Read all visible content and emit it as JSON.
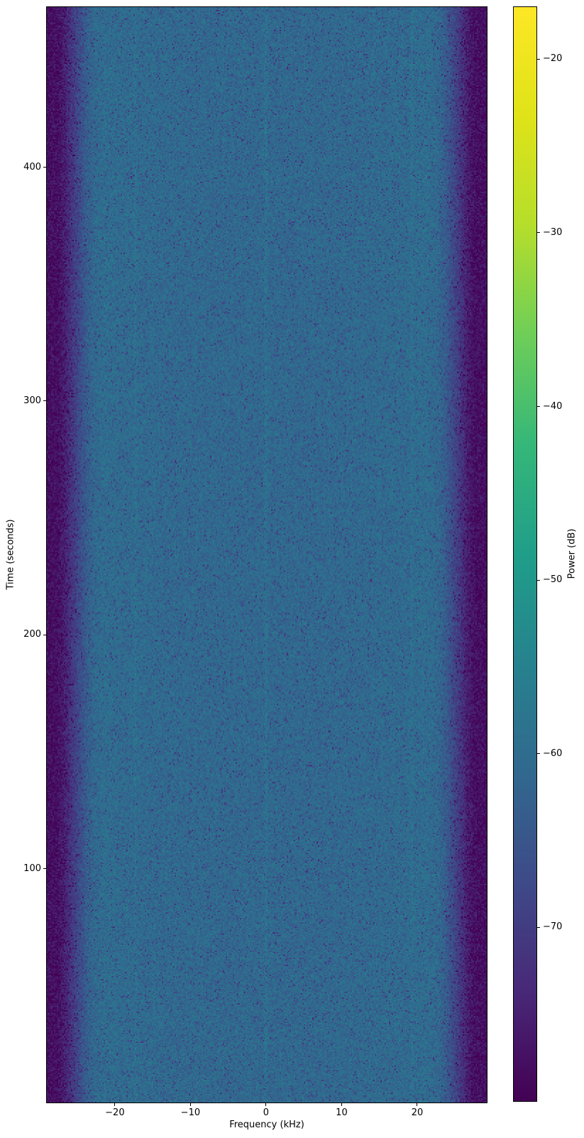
{
  "chart_data": {
    "type": "heatmap",
    "subtype": "spectrogram-waterfall",
    "title": "",
    "xlabel": "Frequency (kHz)",
    "ylabel": "Time (seconds)",
    "xlim": [
      -29.0,
      29.2
    ],
    "ylim": [
      0,
      468.5
    ],
    "x_ticks": [
      -20,
      -10,
      0,
      10,
      20
    ],
    "y_ticks": [
      100,
      200,
      300,
      400
    ],
    "grid": false,
    "legend": "none",
    "colormap": "viridis",
    "colormap_stops": [
      [
        0.0,
        "#440154"
      ],
      [
        0.1,
        "#482878"
      ],
      [
        0.2,
        "#3e4a89"
      ],
      [
        0.3,
        "#31688e"
      ],
      [
        0.4,
        "#26828e"
      ],
      [
        0.5,
        "#1f9e89"
      ],
      [
        0.6,
        "#35b779"
      ],
      [
        0.7,
        "#6ece58"
      ],
      [
        0.8,
        "#b5de2b"
      ],
      [
        0.9,
        "#dfe318"
      ],
      [
        1.0,
        "#fde725"
      ]
    ],
    "colorbar": {
      "label": "Power (dB)",
      "ticks": [
        -20,
        -30,
        -40,
        -50,
        -60,
        -70
      ],
      "vmin": -80,
      "vmax": -17,
      "position": "right"
    },
    "heatmap_summary": {
      "description": "Uniform-in-time RF noise spectrogram: flat blue passband of about -61 dB between roughly -22 and +22 kHz, rolling off to a dark purple noise floor near -78 dB beyond about +/-27 kHz; faint narrow carrier lines near 0, -17.3 and +19.3 kHz.",
      "passband_khz": [
        -22.5,
        22.5
      ],
      "passband_level_db": -61,
      "noise_floor_db": -77.8,
      "spectral_profile_db": [
        [
          -29.0,
          -77.8
        ],
        [
          -27.6,
          -77.5
        ],
        [
          -26.6,
          -75.0
        ],
        [
          -25.7,
          -71.0
        ],
        [
          -24.7,
          -67.0
        ],
        [
          -23.7,
          -63.2
        ],
        [
          -22.7,
          -60.9
        ],
        [
          -21.3,
          -60.0
        ],
        [
          -19.5,
          -60.4
        ],
        [
          -10.0,
          -60.9
        ],
        [
          0.0,
          -61.0
        ],
        [
          10.0,
          -60.9
        ],
        [
          19.5,
          -60.4
        ],
        [
          21.3,
          -60.0
        ],
        [
          22.7,
          -60.9
        ],
        [
          23.7,
          -63.2
        ],
        [
          24.7,
          -67.0
        ],
        [
          25.7,
          -71.0
        ],
        [
          26.6,
          -75.0
        ],
        [
          27.6,
          -77.5
        ],
        [
          29.2,
          -77.8
        ]
      ],
      "carriers": [
        {
          "freq_khz": 0.0,
          "boost_db": 2.0,
          "width_khz": 0.22
        },
        {
          "freq_khz": 19.3,
          "boost_db": 1.4,
          "width_khz": 0.2
        },
        {
          "freq_khz": -17.3,
          "boost_db": 1.2,
          "width_khz": 0.2
        }
      ],
      "noise": {
        "amplitude_db": 4.5,
        "dark_speckle_prob": 0.07,
        "dark_speckle_extra_db": 7
      }
    },
    "background_color": "#ffffff",
    "spine_color": "#000000"
  }
}
